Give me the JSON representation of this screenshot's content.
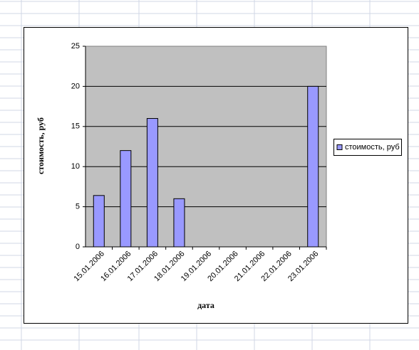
{
  "chart_data": {
    "type": "bar",
    "x_label": "дата",
    "y_label": "стоимость, руб",
    "categories": [
      "15.01.2006",
      "16.01.2006",
      "17.01.2006",
      "18.01.2006",
      "19.01.2006",
      "20.01.2006",
      "21.01.2006",
      "22.01.2006",
      "23.01.2006"
    ],
    "series": [
      {
        "name": "стоимость, руб",
        "color": "#9999ff",
        "values": [
          6.4,
          12,
          16,
          6,
          null,
          null,
          null,
          null,
          20
        ]
      }
    ],
    "ylim": [
      0,
      25
    ],
    "yticks": [
      0,
      5,
      10,
      15,
      20,
      25
    ],
    "grid": true,
    "legend": "right"
  }
}
